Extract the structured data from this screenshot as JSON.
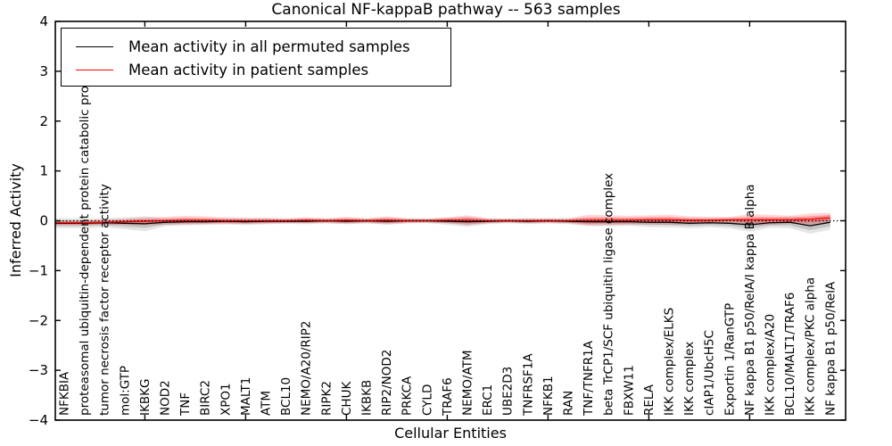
{
  "figure": {
    "title": "Canonical NF-kappaB pathway -- 563 samples",
    "xlabel": "Cellular Entities",
    "ylabel": "Inferred Activity"
  },
  "legend": {
    "entries": [
      {
        "label": "Mean activity in all permuted samples",
        "color": "#000000"
      },
      {
        "label": "Mean activity in patient samples",
        "color": "#ff0000"
      }
    ]
  },
  "chart_data": {
    "type": "line",
    "title": "Canonical NF-kappaB pathway -- 563 samples",
    "xlabel": "Cellular Entities",
    "ylabel": "Inferred Activity",
    "ylim": [
      -4,
      4
    ],
    "yticks": [
      -4,
      -3,
      -2,
      -1,
      0,
      1,
      2,
      3,
      4
    ],
    "ytick_labels": [
      "−4",
      "−3",
      "−2",
      "−1",
      "0",
      "1",
      "2",
      "3",
      "4"
    ],
    "xtick_entity_numbers": [
      5,
      10,
      15,
      20,
      25,
      30,
      35
    ],
    "grid": false,
    "legend_position": "upper left",
    "zero_line": {
      "value": 0,
      "style": "dotted",
      "color": "#000000"
    },
    "categories": [
      "NFKBIA",
      "proteasomal ubiquitin-dependent protein catabolic pro",
      "tumor necrosis factor receptor activity",
      "mol:GTP",
      "IKBKG",
      "NOD2",
      "TNF",
      "BIRC2",
      "XPO1",
      "MALT1",
      "ATM",
      "BCL10",
      "NEMO/A20/RIP2",
      "RIPK2",
      "CHUK",
      "IKBKB",
      "RIP2/NOD2",
      "PRKCA",
      "CYLD",
      "TRAF6",
      "NEMO/ATM",
      "ERC1",
      "UBE2D3",
      "TNFRSF1A",
      "NFKB1",
      "RAN",
      "TNF/TNFR1A",
      "beta TrCP1/SCF ubiquitin ligase complex",
      "FBXW11",
      "RELA",
      "IKK complex/ELKS",
      "IKK complex",
      "cIAP1/UbcH5C",
      "Exportin 1/RanGTP",
      "NF kappa B1 p50/RelA/I kappa B alpha",
      "IKK complex/A20",
      "BCL10/MALT1/TRAF6",
      "IKK complex/PKC alpha",
      "NF kappa B1 p50/RelA"
    ],
    "series": [
      {
        "name": "Mean activity in all permuted samples",
        "color": "#000000",
        "band_color": "#000000",
        "band_opacity": 0.1,
        "values": [
          -0.05,
          -0.05,
          -0.04,
          -0.05,
          -0.06,
          -0.03,
          -0.02,
          -0.02,
          -0.01,
          -0.02,
          -0.01,
          -0.01,
          -0.01,
          0.0,
          -0.01,
          0.0,
          -0.01,
          0.0,
          0.0,
          -0.01,
          -0.02,
          -0.01,
          0.0,
          -0.01,
          0.0,
          -0.01,
          -0.02,
          -0.02,
          -0.02,
          -0.03,
          -0.03,
          -0.05,
          -0.04,
          -0.05,
          -0.08,
          -0.04,
          -0.03,
          -0.1,
          -0.03
        ],
        "band_halfwidth": [
          0.1,
          0.1,
          0.09,
          0.12,
          0.15,
          0.08,
          0.07,
          0.06,
          0.06,
          0.07,
          0.06,
          0.05,
          0.06,
          0.05,
          0.06,
          0.05,
          0.07,
          0.05,
          0.05,
          0.07,
          0.1,
          0.06,
          0.05,
          0.06,
          0.05,
          0.06,
          0.08,
          0.09,
          0.08,
          0.1,
          0.1,
          0.1,
          0.09,
          0.1,
          0.14,
          0.1,
          0.12,
          0.16,
          0.15
        ]
      },
      {
        "name": "Mean activity in patient samples",
        "color": "#ff0000",
        "band_color": "#ff0000",
        "band_opacity": 0.16,
        "values": [
          -0.04,
          -0.04,
          -0.03,
          -0.02,
          -0.01,
          0.0,
          0.01,
          0.01,
          0.0,
          0.0,
          0.0,
          0.0,
          0.01,
          0.0,
          0.01,
          0.0,
          0.01,
          0.0,
          0.0,
          0.01,
          0.01,
          0.0,
          0.0,
          0.0,
          0.0,
          0.0,
          0.01,
          0.01,
          0.01,
          0.02,
          0.02,
          0.01,
          0.01,
          0.02,
          0.02,
          0.02,
          0.02,
          0.03,
          0.06
        ],
        "band_halfwidth": [
          0.05,
          0.05,
          0.05,
          0.06,
          0.08,
          0.08,
          0.09,
          0.08,
          0.07,
          0.06,
          0.06,
          0.05,
          0.06,
          0.05,
          0.07,
          0.05,
          0.08,
          0.05,
          0.04,
          0.06,
          0.1,
          0.05,
          0.04,
          0.05,
          0.05,
          0.05,
          0.11,
          0.1,
          0.09,
          0.09,
          0.1,
          0.08,
          0.07,
          0.06,
          0.11,
          0.1,
          0.08,
          0.12,
          0.1
        ]
      }
    ]
  }
}
